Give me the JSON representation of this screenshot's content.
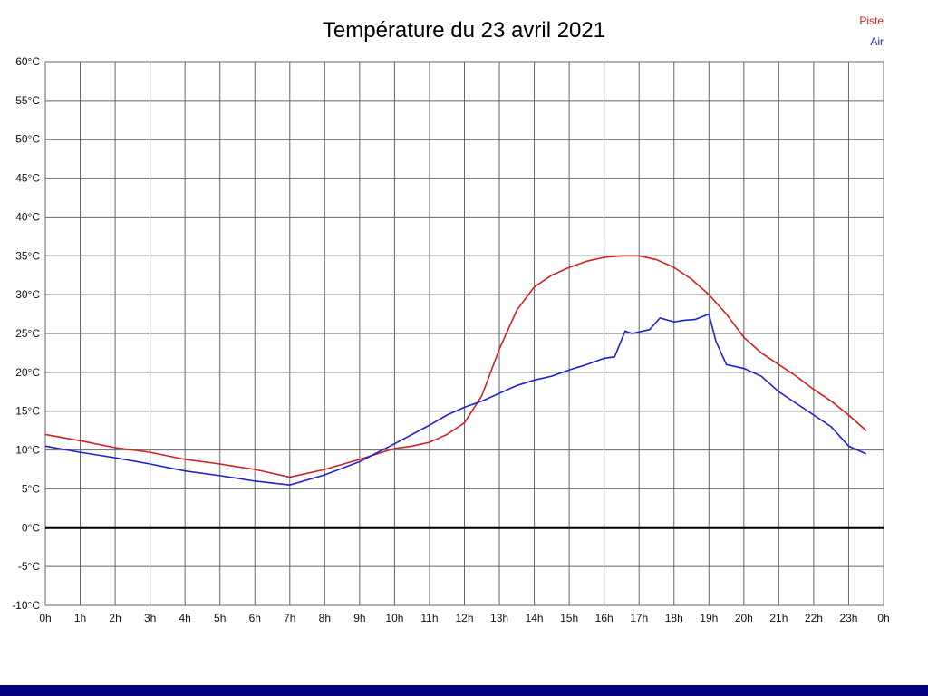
{
  "title": "Température du 23 avril 2021",
  "legend": [
    {
      "label": "Piste",
      "color": "#cc2222"
    },
    {
      "label": "Air",
      "color": "#2222cc"
    }
  ],
  "footer_bar_color": "#000080",
  "chart_data": {
    "type": "line",
    "title": "Température du 23 avril 2021",
    "xlabel": "",
    "ylabel": "",
    "x_range": [
      0,
      24
    ],
    "y_range": [
      -10,
      60
    ],
    "grid": true,
    "grid_color": "#666666",
    "axis_text_color": "#111111",
    "zero_line_color": "#000000",
    "legend_position": "top-right",
    "x_ticks": [
      0,
      1,
      2,
      3,
      4,
      5,
      6,
      7,
      8,
      9,
      10,
      11,
      12,
      13,
      14,
      15,
      16,
      17,
      18,
      19,
      20,
      21,
      22,
      23,
      24
    ],
    "x_tick_labels": [
      "0h",
      "1h",
      "2h",
      "3h",
      "4h",
      "5h",
      "6h",
      "7h",
      "8h",
      "9h",
      "10h",
      "11h",
      "12h",
      "13h",
      "14h",
      "15h",
      "16h",
      "17h",
      "18h",
      "19h",
      "20h",
      "21h",
      "22h",
      "23h",
      "0h"
    ],
    "y_ticks": [
      60,
      55,
      50,
      45,
      40,
      35,
      30,
      25,
      20,
      15,
      10,
      5,
      0,
      -5,
      -10
    ],
    "y_tick_labels": [
      "60°C",
      "55°C",
      "50°C",
      "45°C",
      "40°C",
      "35°C",
      "30°C",
      "25°C",
      "20°C",
      "15°C",
      "10°C",
      "5°C",
      "0°C",
      "-5°C",
      "-10°C"
    ],
    "series": [
      {
        "name": "Piste",
        "color": "#cc2222",
        "x": [
          0,
          1,
          2,
          3,
          4,
          5,
          6,
          7,
          8,
          9,
          10,
          10.5,
          11,
          11.5,
          12,
          12.5,
          13,
          13.5,
          14,
          14.5,
          15,
          15.5,
          16,
          16.5,
          17,
          17.5,
          18,
          18.5,
          19,
          19.5,
          20,
          20.5,
          21,
          21.5,
          22,
          22.5,
          23,
          23.5
        ],
        "values": [
          12,
          11.2,
          10.3,
          9.7,
          8.8,
          8.2,
          7.5,
          6.5,
          7.5,
          8.8,
          10.2,
          10.5,
          11,
          12,
          13.5,
          17,
          23,
          28,
          31,
          32.5,
          33.5,
          34.3,
          34.8,
          35,
          35,
          34.5,
          33.5,
          32,
          30,
          27.5,
          24.5,
          22.5,
          21,
          19.5,
          17.8,
          16.3,
          14.5,
          12.5
        ]
      },
      {
        "name": "Air",
        "color": "#2222cc",
        "x": [
          0,
          1,
          2,
          3,
          4,
          5,
          6,
          7,
          8,
          9,
          10,
          11,
          11.5,
          12,
          12.5,
          13,
          13.5,
          14,
          14.5,
          15,
          15.5,
          16,
          16.3,
          16.6,
          16.8,
          17,
          17.3,
          17.6,
          18,
          18.3,
          18.6,
          19,
          19.2,
          19.5,
          20,
          20.5,
          21,
          21.5,
          22,
          22.5,
          23,
          23.5
        ],
        "values": [
          10.5,
          9.7,
          9,
          8.2,
          7.3,
          6.7,
          6,
          5.5,
          6.8,
          8.5,
          10.8,
          13.2,
          14.5,
          15.5,
          16.3,
          17.3,
          18.3,
          19,
          19.5,
          20.3,
          21,
          21.8,
          22,
          25.3,
          25,
          25.2,
          25.5,
          27,
          26.5,
          26.7,
          26.8,
          27.5,
          24,
          21,
          20.5,
          19.5,
          17.5,
          16,
          14.5,
          13,
          10.5,
          9.5
        ]
      }
    ]
  }
}
